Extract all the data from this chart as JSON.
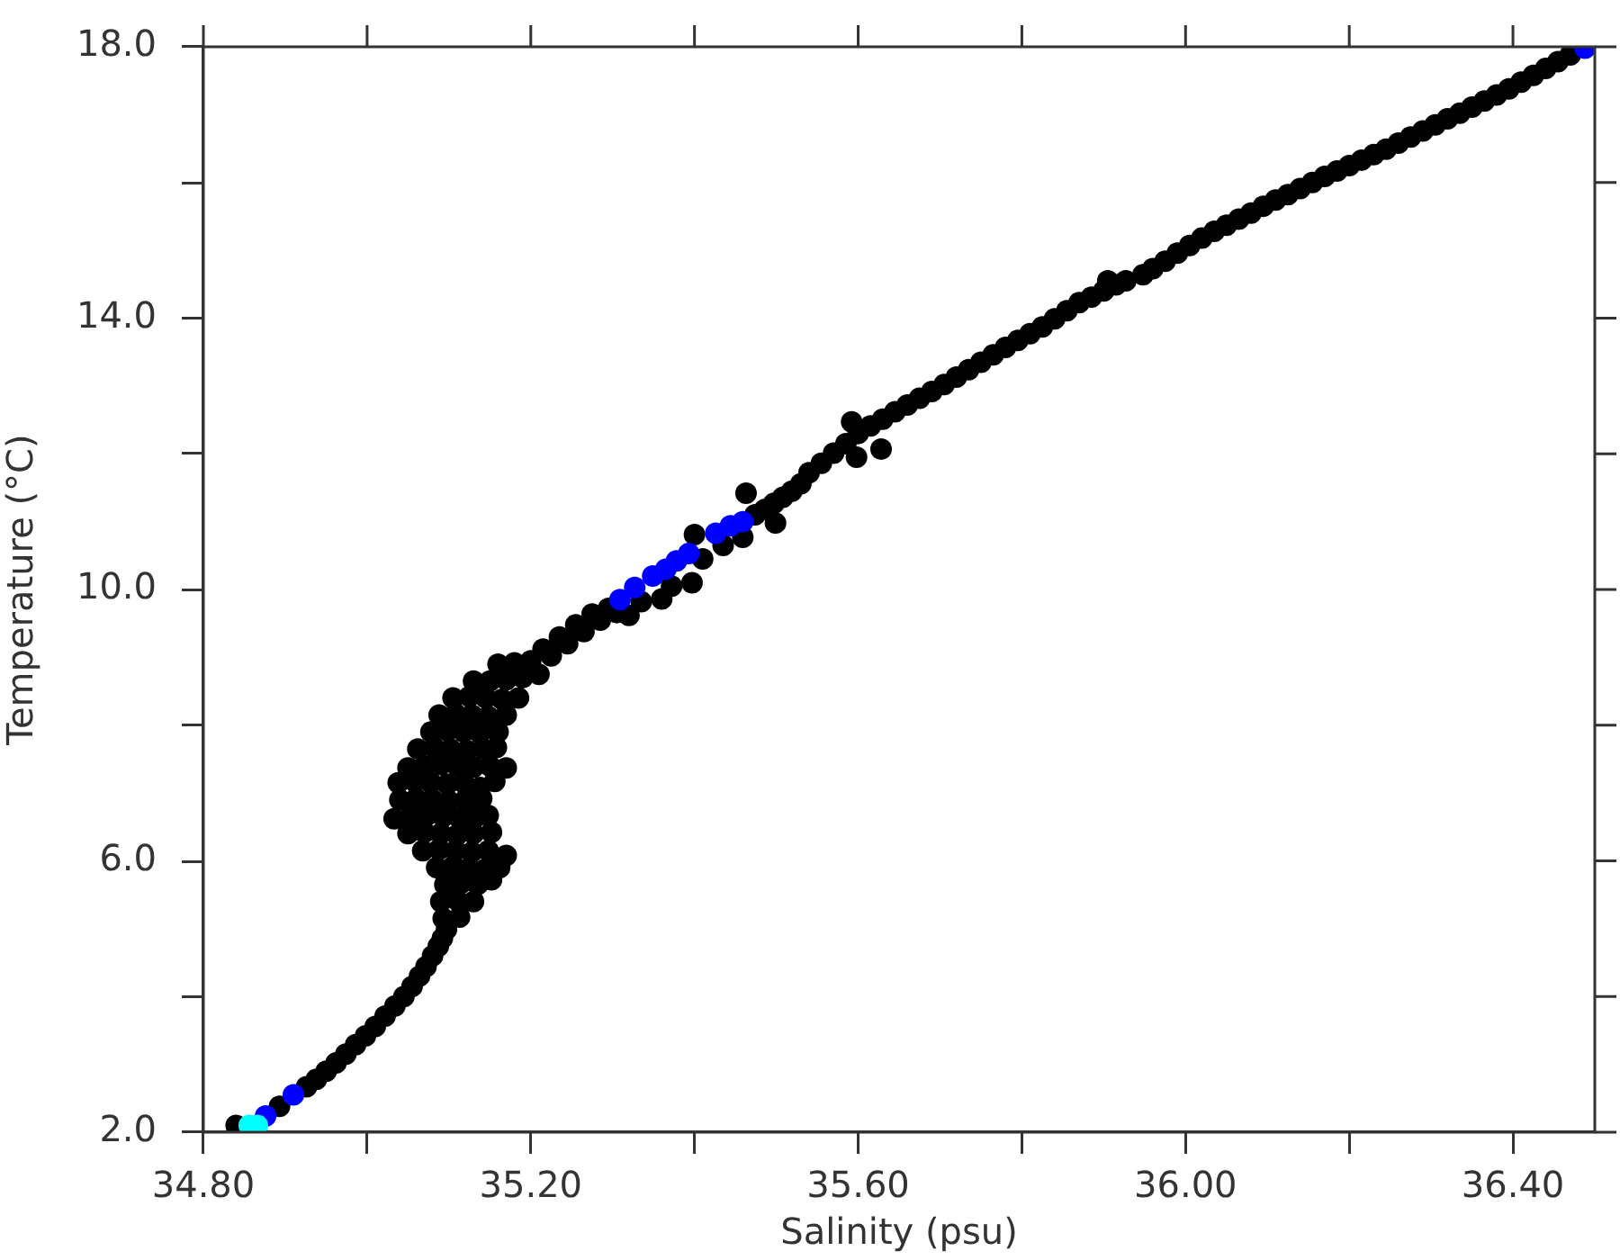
{
  "chart_data": {
    "type": "scatter",
    "xlabel": "Salinity (psu)",
    "ylabel": "Temperature (°C)",
    "xlim": [
      34.8,
      36.5
    ],
    "ylim": [
      2,
      18
    ],
    "xticks": [
      {
        "value": 34.8,
        "label": "34.80"
      },
      {
        "value": 35.0,
        "label": null
      },
      {
        "value": 35.2,
        "label": "35.20"
      },
      {
        "value": 35.4,
        "label": null
      },
      {
        "value": 35.6,
        "label": "35.60"
      },
      {
        "value": 35.8,
        "label": null
      },
      {
        "value": 36.0,
        "label": "36.00"
      },
      {
        "value": 36.2,
        "label": null
      },
      {
        "value": 36.4,
        "label": "36.40"
      }
    ],
    "yticks": [
      {
        "value": 2,
        "label": "2.0"
      },
      {
        "value": 4,
        "label": null
      },
      {
        "value": 6,
        "label": "6.0"
      },
      {
        "value": 8,
        "label": null
      },
      {
        "value": 10,
        "label": "10.0"
      },
      {
        "value": 12,
        "label": null
      },
      {
        "value": 14,
        "label": "14.0"
      },
      {
        "value": 16,
        "label": null
      },
      {
        "value": 18,
        "label": "18.0"
      }
    ],
    "marker": "circle",
    "series": [
      {
        "color": "#000000",
        "x": [
          34.84,
          34.893,
          34.926,
          34.938,
          34.95,
          34.962,
          34.974,
          34.986,
          34.998,
          35.01,
          35.022,
          35.034,
          35.045,
          35.055,
          35.064,
          35.072,
          35.08,
          35.087,
          35.092,
          35.097,
          35.093,
          35.113,
          35.09,
          35.11,
          35.13,
          35.095,
          35.115,
          35.135,
          35.152,
          35.085,
          35.105,
          35.125,
          35.145,
          35.162,
          35.068,
          35.088,
          35.108,
          35.128,
          35.148,
          35.17,
          35.05,
          35.07,
          35.09,
          35.11,
          35.13,
          35.152,
          35.033,
          35.053,
          35.073,
          35.093,
          35.113,
          35.133,
          35.148,
          35.04,
          35.06,
          35.08,
          35.1,
          35.12,
          35.14,
          35.038,
          35.058,
          35.078,
          35.098,
          35.118,
          35.138,
          35.156,
          35.05,
          35.07,
          35.09,
          35.11,
          35.13,
          35.15,
          35.17,
          35.062,
          35.082,
          35.102,
          35.122,
          35.142,
          35.158,
          35.078,
          35.098,
          35.118,
          35.138,
          35.16,
          35.088,
          35.108,
          35.128,
          35.148,
          35.17,
          35.105,
          35.125,
          35.145,
          35.165,
          35.185,
          35.13,
          35.15,
          35.17,
          35.19,
          35.21,
          35.16,
          35.18,
          35.2,
          35.215,
          35.225,
          35.235,
          35.245,
          35.255,
          35.265,
          35.275,
          35.285,
          35.295,
          35.305,
          35.32,
          35.335,
          35.36,
          35.372,
          35.397,
          35.41,
          35.435,
          35.4,
          35.459,
          35.463,
          35.499,
          35.474,
          35.486,
          35.497,
          35.508,
          35.519,
          35.53,
          35.54,
          35.555,
          35.57,
          35.585,
          35.6,
          35.615,
          35.63,
          35.645,
          35.66,
          35.675,
          35.69,
          35.705,
          35.72,
          35.735,
          35.75,
          35.765,
          35.78,
          35.795,
          35.81,
          35.825,
          35.84,
          35.855,
          35.87,
          35.885,
          35.9,
          35.915,
          35.927,
          35.948,
          35.96,
          35.975,
          35.99,
          36.005,
          36.02,
          36.035,
          36.05,
          36.065,
          36.08,
          36.095,
          36.11,
          36.125,
          36.14,
          36.155,
          36.17,
          36.185,
          36.2,
          36.215,
          36.23,
          36.245,
          36.26,
          36.275,
          36.29,
          36.305,
          36.32,
          36.335,
          36.35,
          36.365,
          36.38,
          36.395,
          36.41,
          36.425,
          36.44,
          36.455,
          36.47,
          35.598,
          35.628,
          35.592,
          35.905
        ],
        "values": [
          2.1,
          2.38,
          2.67,
          2.78,
          2.9,
          3.02,
          3.15,
          3.29,
          3.42,
          3.56,
          3.71,
          3.86,
          4,
          4.15,
          4.3,
          4.44,
          4.6,
          4.74,
          4.86,
          4.99,
          5.15,
          5.17,
          5.4,
          5.42,
          5.4,
          5.65,
          5.67,
          5.65,
          5.72,
          5.9,
          5.92,
          5.9,
          5.88,
          5.9,
          6.15,
          6.17,
          6.15,
          6.13,
          6.15,
          6.08,
          6.4,
          6.42,
          6.4,
          6.38,
          6.4,
          6.42,
          6.62,
          6.65,
          6.67,
          6.65,
          6.63,
          6.65,
          6.67,
          6.9,
          6.92,
          6.9,
          6.88,
          6.9,
          6.92,
          7.15,
          7.17,
          7.15,
          7.13,
          7.15,
          7.08,
          7.17,
          7.37,
          7.4,
          7.42,
          7.4,
          7.38,
          7.4,
          7.37,
          7.65,
          7.67,
          7.65,
          7.63,
          7.65,
          7.67,
          7.9,
          7.92,
          7.9,
          7.88,
          7.9,
          8.15,
          8.17,
          8.15,
          8.13,
          8.15,
          8.4,
          8.42,
          8.4,
          8.38,
          8.4,
          8.65,
          8.65,
          8.67,
          8.7,
          8.75,
          8.9,
          8.92,
          8.95,
          9.12,
          9.02,
          9.3,
          9.2,
          9.48,
          9.38,
          9.64,
          9.55,
          9.72,
          9.66,
          9.62,
          9.82,
          9.86,
          10.05,
          10.1,
          10.45,
          10.65,
          10.81,
          10.77,
          11.42,
          10.98,
          11.1,
          11.18,
          11.27,
          11.36,
          11.45,
          11.56,
          11.72,
          11.86,
          12.01,
          12.15,
          12.3,
          12.41,
          12.51,
          12.62,
          12.72,
          12.82,
          12.92,
          13.02,
          13.13,
          13.24,
          13.35,
          13.46,
          13.57,
          13.67,
          13.77,
          13.87,
          13.99,
          14.11,
          14.23,
          14.31,
          14.4,
          14.49,
          14.55,
          14.64,
          14.73,
          14.84,
          14.96,
          15.07,
          15.18,
          15.28,
          15.37,
          15.46,
          15.55,
          15.65,
          15.74,
          15.82,
          15.91,
          16,
          16.09,
          16.17,
          16.25,
          16.33,
          16.41,
          16.49,
          16.58,
          16.67,
          16.76,
          16.85,
          16.94,
          17.02,
          17.11,
          17.2,
          17.29,
          17.38,
          17.48,
          17.58,
          17.68,
          17.78,
          17.88,
          11.95,
          12.07,
          12.47,
          14.55
        ]
      },
      {
        "color": "#0000ff",
        "x": [
          34.876,
          34.91,
          35.309,
          35.327,
          35.349,
          35.365,
          35.378,
          35.393,
          35.426,
          35.444,
          35.459,
          36.488
        ],
        "values": [
          2.24,
          2.55,
          9.85,
          10.03,
          10.2,
          10.3,
          10.42,
          10.53,
          10.83,
          10.94,
          11,
          17.98
        ]
      },
      {
        "color": "#00ffff",
        "x": [
          34.856,
          34.866
        ],
        "values": [
          2.1,
          2.1
        ]
      }
    ]
  }
}
